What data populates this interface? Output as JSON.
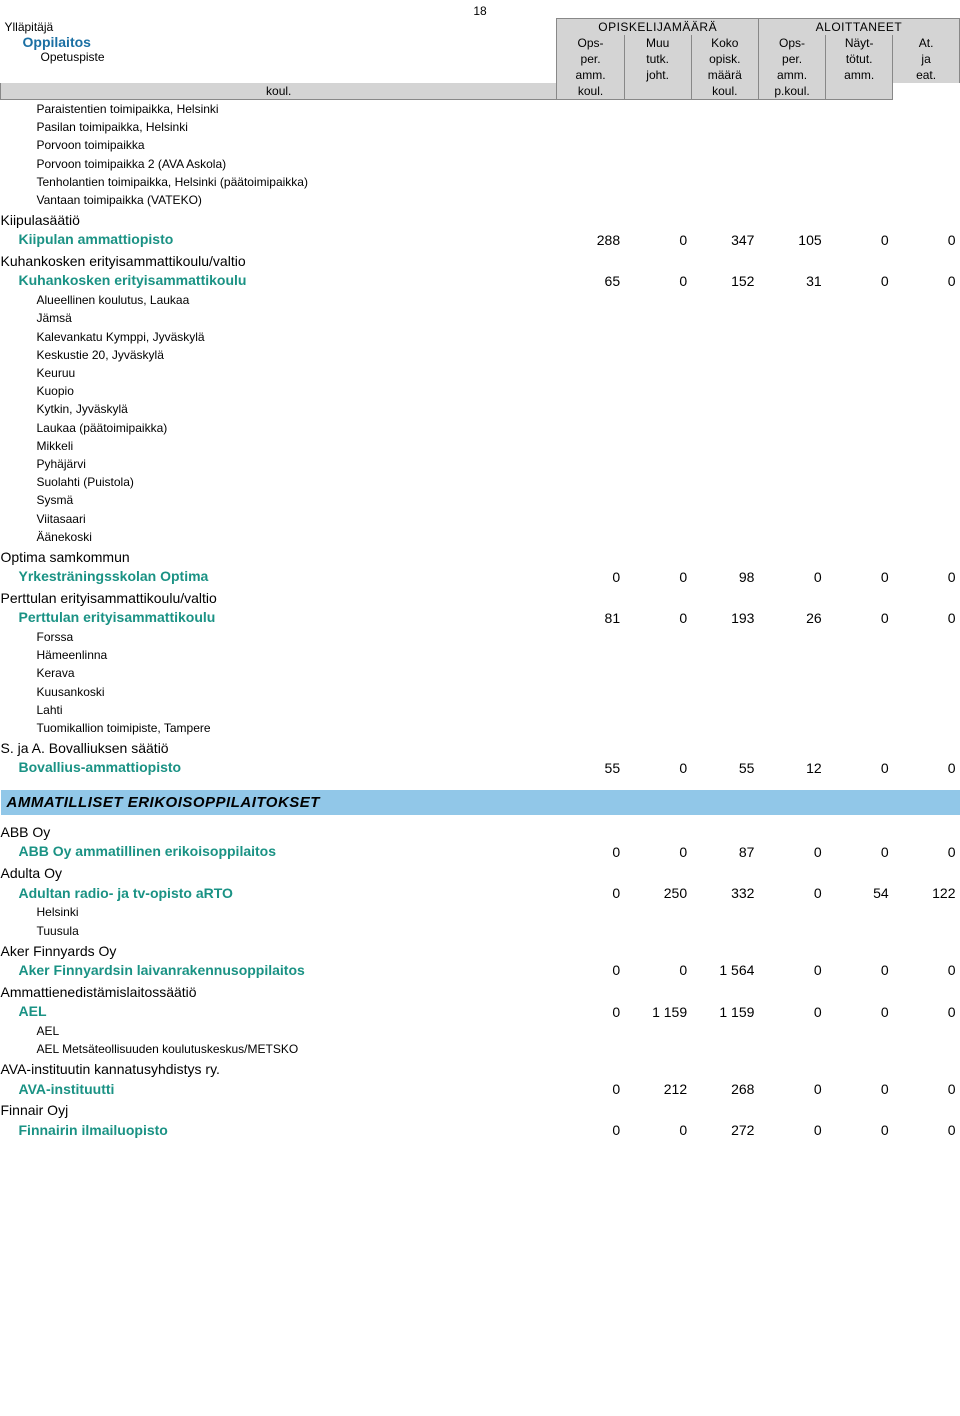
{
  "page_number": "18",
  "header": {
    "left": {
      "line1": "Ylläpitäjä",
      "line2": "Oppilaitos",
      "line3": "Opetuspiste"
    },
    "group1_title": "OPISKELIJAMÄÄRÄ",
    "group2_title": "ALOITTANEET",
    "cols": [
      [
        "Ops-",
        "per.",
        "amm.",
        "koul."
      ],
      [
        "Muu",
        "tutk.",
        "joht.",
        "koul."
      ],
      [
        "Koko",
        "opisk.",
        "määrä",
        ""
      ],
      [
        "Ops-",
        "per.",
        "amm.",
        "koul."
      ],
      [
        "Näyt-",
        "tötut.",
        "amm.",
        "p.koul."
      ],
      [
        "At.",
        "ja",
        "eat.",
        ""
      ]
    ]
  },
  "topsites": [
    "Paraistentien toimipaikka, Helsinki",
    "Pasilan toimipaikka, Helsinki",
    "Porvoon toimipaikka",
    "Porvoon toimipaikka 2 (AVA Askola)",
    "Tenholantien toimipaikka, Helsinki (päätoimipaikka)",
    "Vantaan toimipaikka (VATEKO)"
  ],
  "blocks": [
    {
      "owner": "Kiipulasäätiö",
      "school": "Kiipulan ammattiopisto",
      "vals": [
        "288",
        "0",
        "347",
        "105",
        "0",
        "0"
      ],
      "sites": []
    },
    {
      "owner": "Kuhankosken erityisammattikoulu/valtio",
      "school": "Kuhankosken erityisammattikoulu",
      "vals": [
        "65",
        "0",
        "152",
        "31",
        "0",
        "0"
      ],
      "sites": [
        "Alueellinen koulutus, Laukaa",
        "Jämsä",
        "Kalevankatu Kymppi, Jyväskylä",
        "Keskustie 20, Jyväskylä",
        "Keuruu",
        "Kuopio",
        "Kytkin, Jyväskylä",
        "Laukaa (päätoimipaikka)",
        "Mikkeli",
        "Pyhäjärvi",
        "Suolahti (Puistola)",
        "Sysmä",
        "Viitasaari",
        "Äänekoski"
      ]
    },
    {
      "owner": "Optima samkommun",
      "school": "Yrkesträningsskolan Optima",
      "vals": [
        "0",
        "0",
        "98",
        "0",
        "0",
        "0"
      ],
      "sites": []
    },
    {
      "owner": "Perttulan erityisammattikoulu/valtio",
      "school": "Perttulan erityisammattikoulu",
      "vals": [
        "81",
        "0",
        "193",
        "26",
        "0",
        "0"
      ],
      "sites": [
        "Forssa",
        "Hämeenlinna",
        "Kerava",
        "Kuusankoski",
        "Lahti",
        "Tuomikallion toimipiste, Tampere"
      ]
    },
    {
      "owner": "S. ja A. Bovalliuksen säätiö",
      "school": "Bovallius-ammattiopisto",
      "vals": [
        "55",
        "0",
        "55",
        "12",
        "0",
        "0"
      ],
      "sites": []
    }
  ],
  "section2_title": "AMMATILLISET ERIKOISOPPILAITOKSET",
  "blocks2": [
    {
      "owner": "ABB Oy",
      "school": "ABB Oy ammatillinen erikoisoppilaitos",
      "vals": [
        "0",
        "0",
        "87",
        "0",
        "0",
        "0"
      ],
      "sites": []
    },
    {
      "owner": "Adulta Oy",
      "school": "Adultan radio- ja tv-opisto aRTO",
      "vals": [
        "0",
        "250",
        "332",
        "0",
        "54",
        "122"
      ],
      "sites": [
        "Helsinki",
        "Tuusula"
      ]
    },
    {
      "owner": "Aker Finnyards Oy",
      "school": "Aker Finnyardsin laivanrakennusoppilaitos",
      "vals": [
        "0",
        "0",
        "1 564",
        "0",
        "0",
        "0"
      ],
      "sites": []
    },
    {
      "owner": "Ammattienedistämislaitossäätiö",
      "school": "AEL",
      "vals": [
        "0",
        "1 159",
        "1 159",
        "0",
        "0",
        "0"
      ],
      "sites": [
        "AEL",
        "AEL Metsäteollisuuden koulutuskeskus/METSKO"
      ]
    },
    {
      "owner": "AVA-instituutin kannatusyhdistys ry.",
      "school": "AVA-instituutti",
      "vals": [
        "0",
        "212",
        "268",
        "0",
        "0",
        "0"
      ],
      "sites": []
    },
    {
      "owner": "Finnair Oyj",
      "school": "Finnairin ilmailuopisto",
      "vals": [
        "0",
        "0",
        "272",
        "0",
        "0",
        "0"
      ],
      "sites": []
    }
  ],
  "colors": {
    "header_bg": "#d4d4d4",
    "section_bg": "#91c7e8",
    "school_color": "#1a9284",
    "header_school_color": "#1a6fa3",
    "text": "#000000"
  }
}
